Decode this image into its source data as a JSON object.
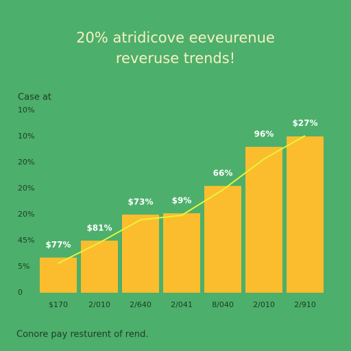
{
  "chart_data": {
    "type": "bar",
    "title": [
      "20% atridicove eeveurenue",
      "reveruse trends!"
    ],
    "y_axis_label": "Case at",
    "footer": "Conore pay resturent of rend.",
    "categories": [
      "$170",
      "2/010",
      "2/640",
      "2/041",
      "8/040",
      "2/010",
      "2/910"
    ],
    "series": [
      {
        "type": "bar",
        "color": "#fbbd2e",
        "values": [
          1.35,
          2.0,
          3.0,
          3.05,
          4.1,
          5.6,
          6.0
        ]
      },
      {
        "type": "line",
        "color": "#e6f53a",
        "values": [
          1.13,
          1.92,
          2.8,
          2.97,
          3.95,
          5.13,
          6.03
        ]
      }
    ],
    "annotations": [
      "$77%",
      "$81%",
      "$73%",
      "$9%",
      "66%",
      "96%",
      "$27%"
    ],
    "ylim": [
      0,
      7
    ],
    "yticks": [
      {
        "value": 0,
        "label": "0"
      },
      {
        "value": 1,
        "label": "5%"
      },
      {
        "value": 2,
        "label": "45%"
      },
      {
        "value": 3,
        "label": "20%"
      },
      {
        "value": 4,
        "label": "20%"
      },
      {
        "value": 5,
        "label": "20%"
      },
      {
        "value": 6,
        "label": "10%"
      },
      {
        "value": 7,
        "label": "10%"
      }
    ],
    "grid": false
  }
}
